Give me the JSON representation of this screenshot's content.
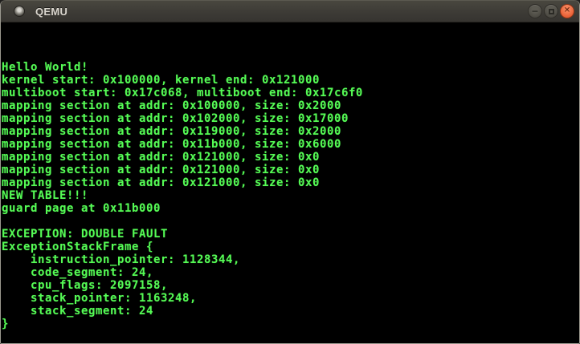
{
  "window": {
    "title": "QEMU",
    "icon": "qemu-orb-icon",
    "controls": [
      {
        "name": "minimize",
        "glyph": "−"
      },
      {
        "name": "maximize",
        "glyph": ""
      },
      {
        "name": "close",
        "glyph": "✕"
      }
    ]
  },
  "colors": {
    "terminal_text": "#55fb55",
    "terminal_background": "#000000",
    "titlebar_background": "#3d3b36",
    "close_button": "#ea6339"
  },
  "terminal": {
    "lines": [
      "",
      "",
      "",
      "Hello World!",
      "kernel start: 0x100000, kernel end: 0x121000",
      "multiboot start: 0x17c068, multiboot end: 0x17c6f0",
      "mapping section at addr: 0x100000, size: 0x2000",
      "mapping section at addr: 0x102000, size: 0x17000",
      "mapping section at addr: 0x119000, size: 0x2000",
      "mapping section at addr: 0x11b000, size: 0x6000",
      "mapping section at addr: 0x121000, size: 0x0",
      "mapping section at addr: 0x121000, size: 0x0",
      "mapping section at addr: 0x121000, size: 0x0",
      "NEW TABLE!!!",
      "guard page at 0x11b000",
      "",
      "EXCEPTION: DOUBLE FAULT",
      "ExceptionStackFrame {",
      "    instruction_pointer: 1128344,",
      "    code_segment: 24,",
      "    cpu_flags: 2097158,",
      "    stack_pointer: 1163248,",
      "    stack_segment: 24",
      "}",
      ""
    ]
  }
}
